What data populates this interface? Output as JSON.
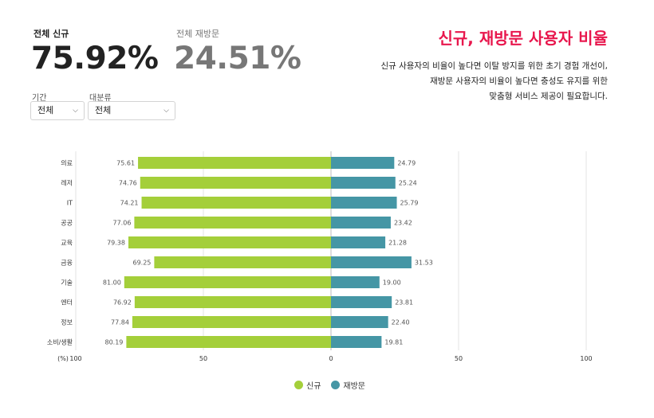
{
  "kpis": {
    "new": {
      "label": "전체 신규",
      "value": "75.92%"
    },
    "returning": {
      "label": "전체 재방문",
      "value": "24.51%"
    }
  },
  "filters": {
    "period": {
      "label": "기간",
      "value": "전체"
    },
    "category": {
      "label": "대분류",
      "value": "전체"
    }
  },
  "headline": "신규, 재방문 사용자 비율",
  "description": [
    "신규 사용자의 비율이 높다면 이탈 방지를 위한 초기 경험 개선이,",
    "재방문 사용자의 비율이 높다면 충성도 유지를 위한",
    "맞춤형 서비스 제공이 필요합니다."
  ],
  "colors": {
    "new": "#a4cf3a",
    "returning": "#4596a5",
    "accent": "#e8174d"
  },
  "chart_data": {
    "type": "bar",
    "orientation": "horizontal-diverging",
    "categories": [
      "의료",
      "레저",
      "IT",
      "공공",
      "교육",
      "금융",
      "기술",
      "엔터",
      "정보",
      "소비/생활"
    ],
    "series": [
      {
        "name": "신규",
        "values": [
          75.61,
          74.76,
          74.21,
          77.06,
          79.38,
          69.25,
          81.0,
          76.92,
          77.84,
          80.19
        ],
        "labels": [
          "75.61",
          "74.76",
          "74.21",
          "77.06",
          "79.38",
          "69.25",
          "81.00",
          "76.92",
          "77.84",
          "80.19"
        ]
      },
      {
        "name": "재방문",
        "values": [
          24.79,
          25.24,
          25.79,
          23.42,
          21.28,
          31.53,
          19.0,
          23.81,
          22.4,
          19.81
        ],
        "labels": [
          "24.79",
          "25.24",
          "25.79",
          "23.42",
          "21.28",
          "31.53",
          "19.00",
          "23.81",
          "22.40",
          "19.81"
        ]
      }
    ],
    "xaxis": {
      "unit_label": "(%)",
      "ticks": [
        100,
        50,
        0,
        50,
        100
      ],
      "range": [
        -100,
        100
      ]
    },
    "legend": "bottom-center"
  }
}
